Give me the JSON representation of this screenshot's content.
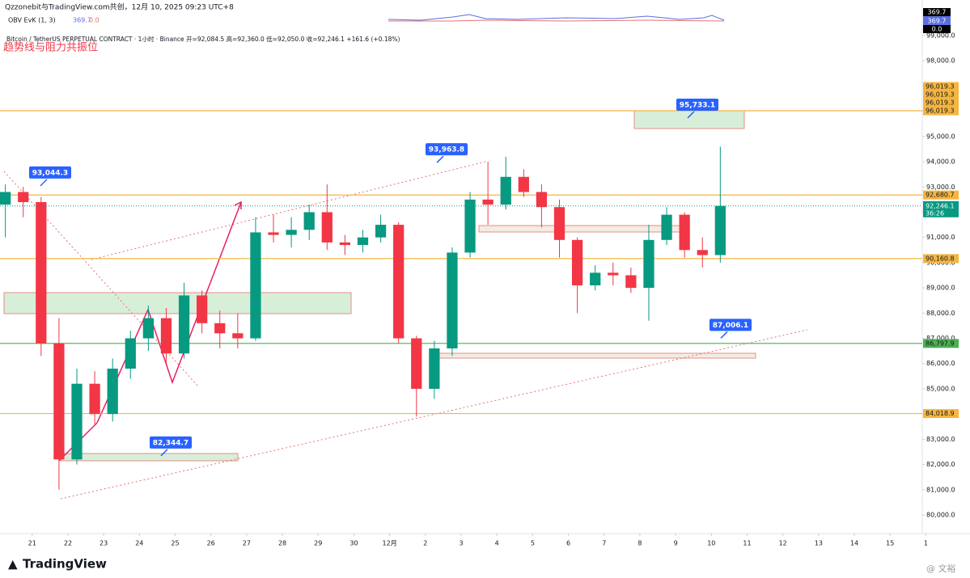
{
  "chart_data": {
    "type": "candlestick",
    "title": "Qzzonebit与TradingView.com共创，12月 10, 2025 09:23 UTC+8",
    "subtitle": "Bitcoin / TetherUS PERPETUAL CONTRACT · 1小时 · Binance  开=92,084.5 高=92,360.0 低=92,050.0 收=92,246.1 +161.6 (+0.18%)",
    "annotation": "趋势线与阻力共振位",
    "indicator": {
      "name": "OBV EvK (1, 3)",
      "legend_values": [
        "369.7",
        "0.0"
      ],
      "axis_labels": [
        "369.7",
        "369.7",
        "0.0"
      ]
    },
    "x": [
      -0.75,
      -0.25,
      0.25,
      0.75,
      1.25,
      1.75,
      2.25,
      2.75,
      3.25,
      3.75,
      4.25,
      4.75,
      5.25,
      5.75,
      6.25,
      6.75,
      7.25,
      7.75,
      8.25,
      8.75,
      9.25,
      9.75,
      10.25,
      10.75,
      11.25,
      11.75,
      12.25,
      12.75,
      13.25,
      13.75,
      14.25,
      14.75,
      15.25,
      15.75,
      16.25,
      16.75,
      17.25,
      17.75,
      18.25,
      18.75,
      19.25
    ],
    "open": [
      92300,
      92800,
      92400,
      86800,
      82200,
      85200,
      84000,
      85800,
      87000,
      87800,
      86400,
      88700,
      87600,
      87200,
      87000,
      91200,
      91100,
      91300,
      92000,
      90800,
      90700,
      91000,
      91500,
      87000,
      85000,
      86600,
      90400,
      92500,
      92300,
      93400,
      92800,
      92200,
      90900,
      89100,
      89600,
      89500,
      89000,
      90900,
      91900,
      90500,
      90300
    ],
    "high": [
      93100,
      93000,
      92600,
      87800,
      85800,
      85700,
      86200,
      87300,
      88300,
      88200,
      89200,
      88900,
      88100,
      88000,
      91800,
      91900,
      91800,
      92300,
      93100,
      91100,
      91300,
      91900,
      91600,
      87100,
      86900,
      90600,
      92800,
      94000,
      94200,
      93700,
      93100,
      92500,
      91000,
      89900,
      90000,
      89800,
      91500,
      92200,
      92000,
      91000,
      94600
    ],
    "low": [
      91000,
      91800,
      86300,
      81000,
      82000,
      83600,
      83700,
      85400,
      86500,
      86000,
      86200,
      87200,
      86600,
      86600,
      86900,
      90800,
      90600,
      90900,
      90500,
      90300,
      90400,
      90800,
      86800,
      83900,
      84600,
      86300,
      90200,
      91500,
      92100,
      92600,
      91400,
      90200,
      88000,
      88900,
      89100,
      88800,
      87700,
      90700,
      90200,
      89800,
      90000
    ],
    "close": [
      92800,
      92400,
      86800,
      82200,
      85200,
      84000,
      85800,
      87000,
      87800,
      86400,
      88700,
      87600,
      87200,
      87000,
      91200,
      91100,
      91300,
      92000,
      90800,
      90700,
      91000,
      91500,
      87000,
      85000,
      86600,
      90400,
      92500,
      92300,
      93400,
      92800,
      92200,
      90900,
      89100,
      89600,
      89500,
      89000,
      90900,
      91900,
      90500,
      90300,
      92246.1
    ],
    "up_color": "#089981",
    "down_color": "#f23645",
    "xlim": [
      -0.9,
      24.9
    ],
    "xticks": [
      {
        "value": 0,
        "label": "21"
      },
      {
        "value": 1,
        "label": "22"
      },
      {
        "value": 2,
        "label": "23"
      },
      {
        "value": 3,
        "label": "24"
      },
      {
        "value": 4,
        "label": "25"
      },
      {
        "value": 5,
        "label": "26"
      },
      {
        "value": 6,
        "label": "27"
      },
      {
        "value": 7,
        "label": "28"
      },
      {
        "value": 8,
        "label": "29"
      },
      {
        "value": 9,
        "label": "30"
      },
      {
        "value": 10,
        "label": "12月"
      },
      {
        "value": 11,
        "label": "2"
      },
      {
        "value": 12,
        "label": "3"
      },
      {
        "value": 13,
        "label": "4"
      },
      {
        "value": 14,
        "label": "5"
      },
      {
        "value": 15,
        "label": "6"
      },
      {
        "value": 16,
        "label": "7"
      },
      {
        "value": 17,
        "label": "8"
      },
      {
        "value": 18,
        "label": "9"
      },
      {
        "value": 19,
        "label": "10"
      },
      {
        "value": 20,
        "label": "11"
      },
      {
        "value": 21,
        "label": "12"
      },
      {
        "value": 22,
        "label": "13"
      },
      {
        "value": 23,
        "label": "14"
      },
      {
        "value": 24,
        "label": "15"
      },
      {
        "value": 25,
        "label": "1"
      }
    ],
    "ylim": [
      79263,
      100410
    ],
    "yticks": [
      {
        "value": 80000,
        "label": "80,000.0"
      },
      {
        "value": 81000,
        "label": "81,000.0"
      },
      {
        "value": 82000,
        "label": "82,000.0"
      },
      {
        "value": 83000,
        "label": "83,000.0"
      },
      {
        "value": 84000,
        "label": "84,000.0"
      },
      {
        "value": 85000,
        "label": "85,000.0"
      },
      {
        "value": 86000,
        "label": "86,000.0"
      },
      {
        "value": 87000,
        "label": "87,000.0"
      },
      {
        "value": 88000,
        "label": "88,000.0"
      },
      {
        "value": 89000,
        "label": "89,000.0"
      },
      {
        "value": 90000,
        "label": "90,000.0"
      },
      {
        "value": 91000,
        "label": "91,000.0"
      },
      {
        "value": 92000,
        "label": "92,000.0"
      },
      {
        "value": 93000,
        "label": "93,000.0"
      },
      {
        "value": 94000,
        "label": "94,000.0"
      },
      {
        "value": 95000,
        "label": "95,000.0"
      },
      {
        "value": 96000,
        "label": "96,000.0"
      },
      {
        "value": 97000,
        "label": "97,000.0"
      },
      {
        "value": 98000,
        "label": "98,000.0"
      },
      {
        "value": 99000,
        "label": "99,000.0"
      }
    ],
    "grid": false,
    "price_lines": [
      {
        "value": 96019.3,
        "label": "96,019.3",
        "color": "#f5b53f"
      },
      {
        "value": 92680.7,
        "label": "92,680.7",
        "color": "#f5b53f"
      },
      {
        "value": 90160.8,
        "label": "90,160.8",
        "color": "#f5b53f"
      },
      {
        "value": 84018.9,
        "label": "84,018.9",
        "color": "#f5b53f"
      },
      {
        "value": 86797.9,
        "label": "86,797.9",
        "color": "#4caf50"
      }
    ],
    "stacked_labels": [
      {
        "value": 96019.3,
        "label": "96,019.3"
      },
      {
        "value": 96019.3,
        "label": "96,019.3"
      },
      {
        "value": 96019.3,
        "label": "96,019.3"
      }
    ],
    "current_price": {
      "value": 92246.1,
      "label": "92,246.1",
      "countdown": "36:26",
      "color": "#089981"
    },
    "callouts": [
      {
        "value": 93044.3,
        "label": "93,044.3"
      },
      {
        "value": 95733.1,
        "label": "95,733.1"
      },
      {
        "value": 93963.8,
        "label": "93,963.8"
      },
      {
        "value": 87006.1,
        "label": "87,006.1"
      },
      {
        "value": 82344.7,
        "label": "82,344.7"
      }
    ],
    "footer": "TradingView",
    "watermark": "@ 文裕"
  }
}
